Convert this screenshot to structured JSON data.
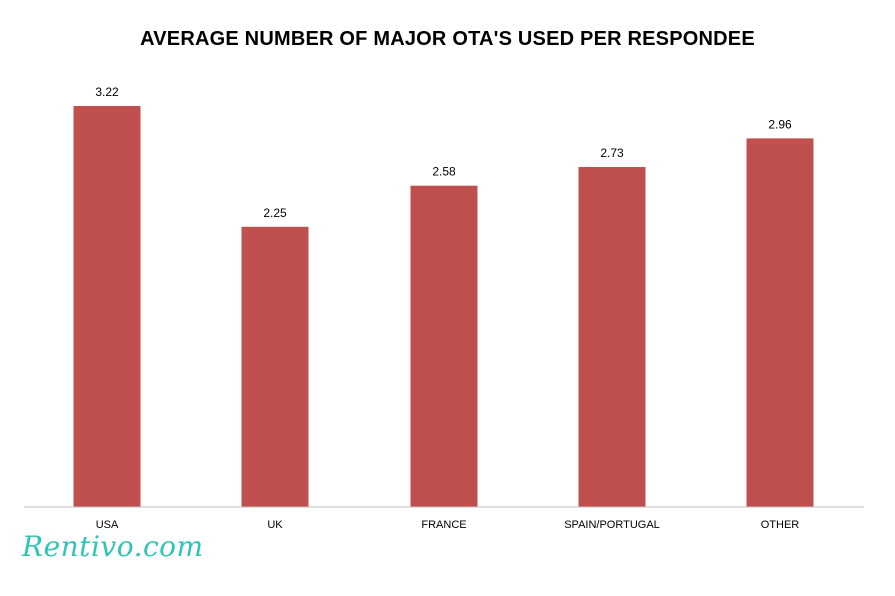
{
  "chart_data": {
    "type": "bar",
    "title": "AVERAGE NUMBER OF MAJOR OTA'S USED PER RESPONDEE",
    "categories": [
      "USA",
      "UK",
      "FRANCE",
      "SPAIN/PORTUGAL",
      "OTHER"
    ],
    "values": [
      3.22,
      2.25,
      2.58,
      2.73,
      2.96
    ],
    "data_labels": [
      "3.22",
      "2.25",
      "2.58",
      "2.73",
      "2.96"
    ],
    "ylim": [
      0,
      3.22
    ],
    "grid": false,
    "legend": "none",
    "bar_color": "#c0504d"
  },
  "watermark": {
    "text": "Rentivo.com",
    "color": "#2ec4b6"
  }
}
